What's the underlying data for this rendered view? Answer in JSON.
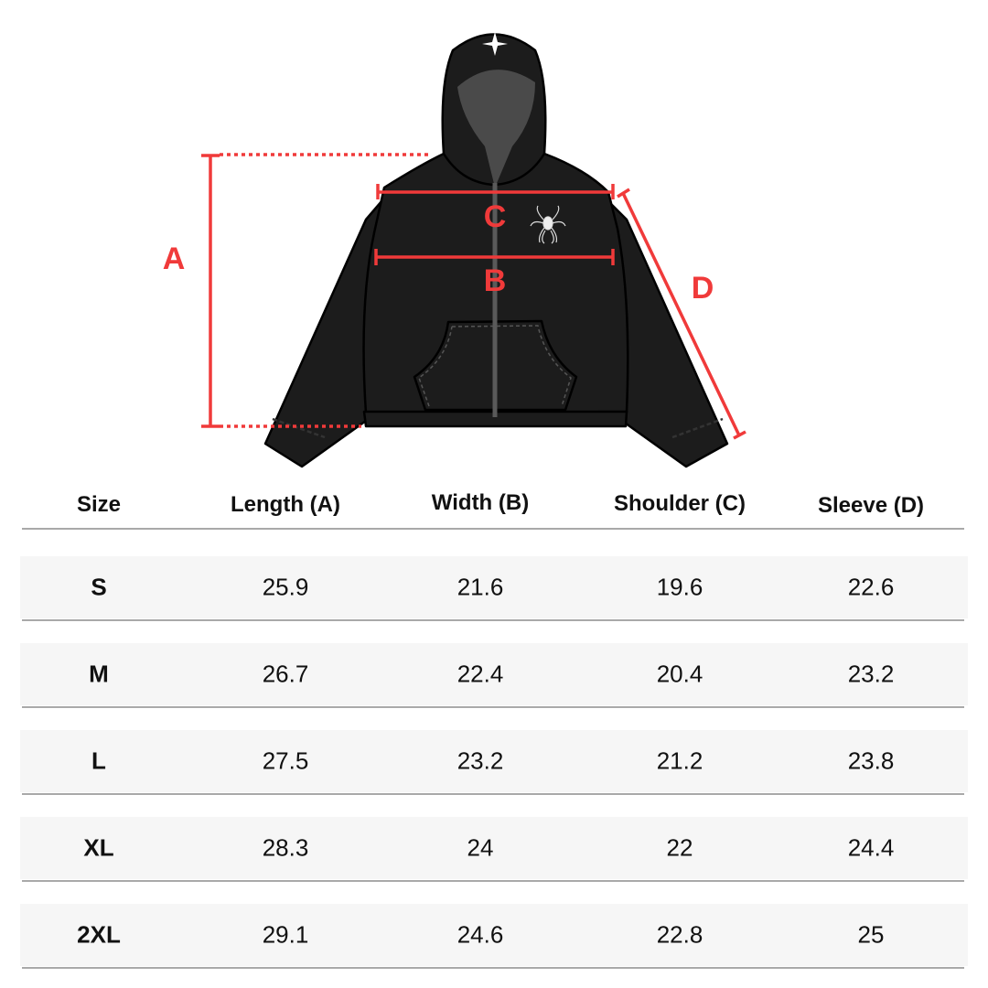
{
  "diagram": {
    "labels": {
      "A": "A",
      "B": "B",
      "C": "C",
      "D": "D"
    },
    "colors": {
      "measure": "#f03a3a",
      "garment": "#1c1c1c",
      "hood_inner": "#4a4a4a",
      "zipper": "#5a5a5a"
    },
    "icons": [
      "cross-emblem-icon",
      "spider-emblem-icon"
    ]
  },
  "table": {
    "headers": [
      "Size",
      "Length (A)",
      "Width (B)",
      "Shoulder (C)",
      "Sleeve (D)"
    ],
    "rows": [
      [
        "S",
        "25.9",
        "21.6",
        "19.6",
        "22.6"
      ],
      [
        "M",
        "26.7",
        "22.4",
        "20.4",
        "23.2"
      ],
      [
        "L",
        "27.5",
        "23.2",
        "21.2",
        "23.8"
      ],
      [
        "XL",
        "28.3",
        "24",
        "22",
        "24.4"
      ],
      [
        "2XL",
        "29.1",
        "24.6",
        "22.8",
        "25"
      ]
    ],
    "colors": {
      "row_band": "#f6f6f6",
      "rule": "#a9a9a9"
    }
  }
}
